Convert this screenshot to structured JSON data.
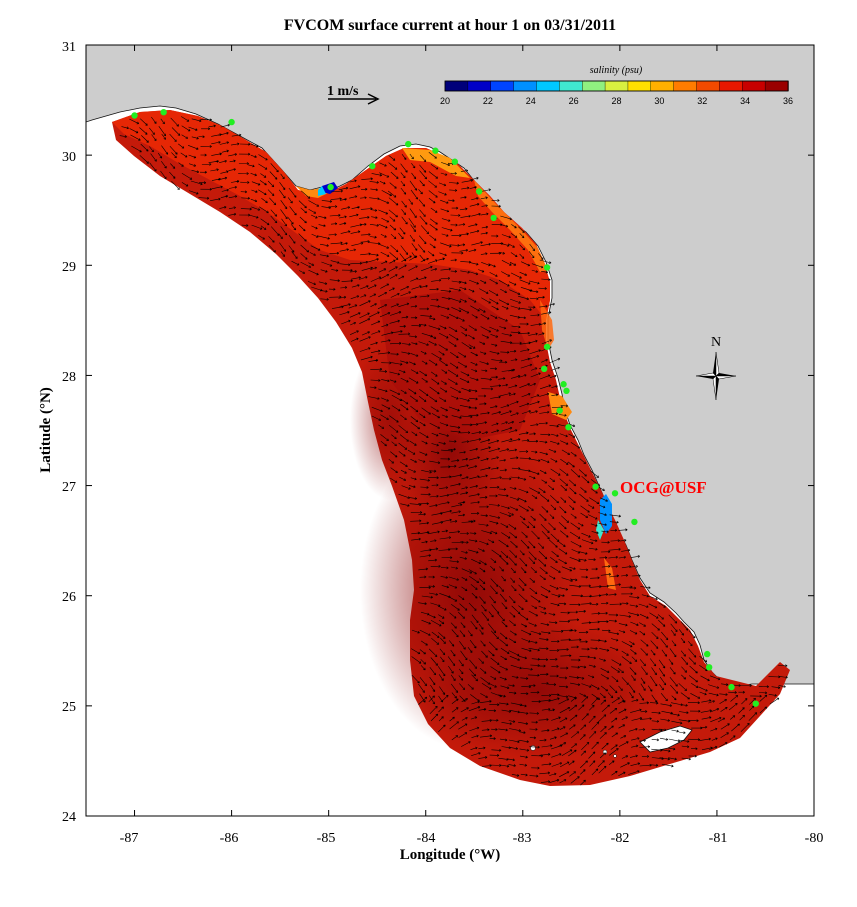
{
  "title": "FVCOM surface current at hour 1 on 03/31/2011",
  "xlabel": "Longitude (°W)",
  "ylabel": "Latitude (°N)",
  "x_ticks": [
    "-87",
    "-86",
    "-85",
    "-84",
    "-83",
    "-82",
    "-81",
    "-80"
  ],
  "y_ticks": [
    "24",
    "25",
    "26",
    "27",
    "28",
    "29",
    "30",
    "31"
  ],
  "x_range": [
    -87.5,
    -80
  ],
  "y_range": [
    24,
    31
  ],
  "colorbar": {
    "title": "salinity (psu)",
    "min": 20,
    "max": 36,
    "tick_labels": [
      "20",
      "22",
      "24",
      "26",
      "28",
      "30",
      "32",
      "34",
      "36"
    ],
    "colors": [
      "#00007a",
      "#0000c8",
      "#0044ff",
      "#0090ff",
      "#00c8ff",
      "#40e8d0",
      "#90f080",
      "#d8f040",
      "#ffe000",
      "#ffb000",
      "#ff7c00",
      "#f24a00",
      "#e81800",
      "#c80000",
      "#9a0000"
    ]
  },
  "scale_vector_label": "1 m/s",
  "north_label": "N",
  "brand_label": "OCG@USF",
  "colors": {
    "land": "#cdcdcd",
    "sea_base": "#c41a0a",
    "shelf_high": "#ee2a00",
    "deep": "#950808",
    "station": "#22ee22",
    "brand": "#ff0000"
  },
  "stations_lonlat": [
    [
      -87.0,
      30.36
    ],
    [
      -86.7,
      30.39
    ],
    [
      -86.0,
      30.3
    ],
    [
      -84.98,
      29.71
    ],
    [
      -84.55,
      29.9
    ],
    [
      -84.18,
      30.1
    ],
    [
      -83.9,
      30.04
    ],
    [
      -83.7,
      29.94
    ],
    [
      -83.45,
      29.67
    ],
    [
      -83.3,
      29.43
    ],
    [
      -82.75,
      28.98
    ],
    [
      -82.75,
      28.26
    ],
    [
      -82.78,
      28.06
    ],
    [
      -82.58,
      27.92
    ],
    [
      -82.55,
      27.86
    ],
    [
      -82.62,
      27.68
    ],
    [
      -82.53,
      27.53
    ],
    [
      -82.25,
      26.99
    ],
    [
      -82.05,
      26.93
    ],
    [
      -81.85,
      26.67
    ],
    [
      -81.1,
      25.47
    ],
    [
      -81.08,
      25.35
    ],
    [
      -80.85,
      25.17
    ],
    [
      -80.6,
      25.02
    ]
  ]
}
